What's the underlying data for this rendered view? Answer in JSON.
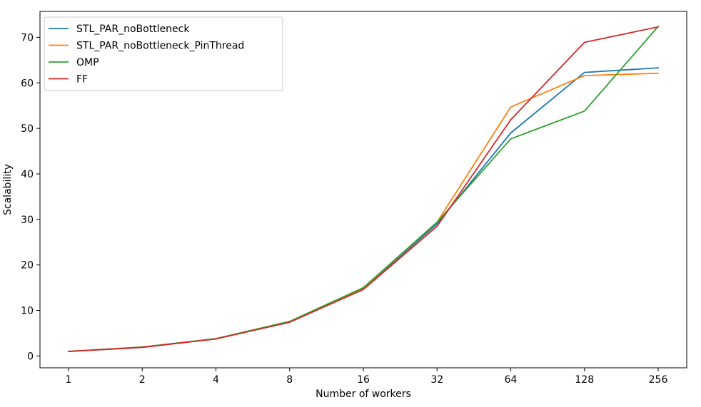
{
  "chart_data": {
    "type": "line",
    "xlabel": "Number of workers",
    "ylabel": "Scalability",
    "x": [
      "1",
      "2",
      "4",
      "8",
      "16",
      "32",
      "64",
      "128",
      "256"
    ],
    "yticks": [
      0,
      10,
      20,
      30,
      40,
      50,
      60,
      70
    ],
    "ylim": [
      -2.6,
      75.7
    ],
    "grid": false,
    "legend_position": "top-left",
    "series": [
      {
        "name": "STL_PAR_noBottleneck",
        "color": "#1f77b4",
        "values": [
          1.0,
          1.9,
          3.8,
          7.5,
          14.8,
          29.0,
          49.0,
          62.3,
          63.3
        ]
      },
      {
        "name": "STL_PAR_noBottleneck_PinThread",
        "color": "#ff7f0e",
        "values": [
          1.0,
          1.95,
          3.75,
          7.5,
          14.9,
          29.4,
          54.7,
          61.6,
          62.1
        ]
      },
      {
        "name": "OMP",
        "color": "#2ca02c",
        "values": [
          1.0,
          1.95,
          3.8,
          7.6,
          15.0,
          29.4,
          47.7,
          53.8,
          72.4
        ]
      },
      {
        "name": "FF",
        "color": "#d62728",
        "values": [
          1.0,
          1.9,
          3.75,
          7.4,
          14.6,
          28.5,
          51.9,
          68.9,
          72.3
        ]
      }
    ]
  }
}
